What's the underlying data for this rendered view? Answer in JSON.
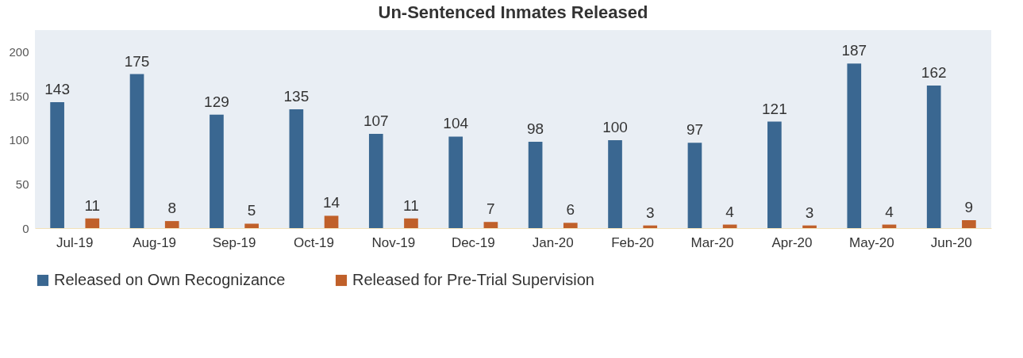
{
  "chart_data": {
    "type": "bar",
    "title": "Un-Sentenced Inmates Released",
    "categories": [
      "Jul-19",
      "Aug-19",
      "Sep-19",
      "Oct-19",
      "Nov-19",
      "Dec-19",
      "Jan-20",
      "Feb-20",
      "Mar-20",
      "Apr-20",
      "May-20",
      "Jun-20"
    ],
    "series": [
      {
        "name": "Released on Own Recognizance",
        "color": "#3a6791",
        "values": [
          143,
          175,
          129,
          135,
          107,
          104,
          98,
          100,
          97,
          121,
          187,
          162
        ]
      },
      {
        "name": "Released for Pre-Trial Supervision",
        "color": "#c0602a",
        "values": [
          11,
          8,
          5,
          14,
          11,
          7,
          6,
          3,
          4,
          3,
          4,
          9
        ]
      }
    ],
    "ylim": [
      0,
      225
    ],
    "yticks": [
      0,
      50,
      100,
      150,
      200
    ],
    "grid": false,
    "legend": "bottom",
    "data_labels": true
  }
}
